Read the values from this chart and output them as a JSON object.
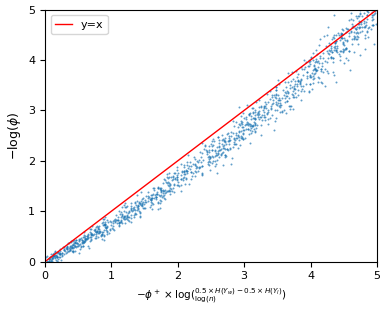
{
  "xlim": [
    0,
    5
  ],
  "ylim": [
    0,
    5
  ],
  "xticks": [
    0,
    1,
    2,
    3,
    4,
    5
  ],
  "yticks": [
    0,
    1,
    2,
    3,
    4,
    5
  ],
  "line_color": "red",
  "line_label": "y=x",
  "scatter_color": "#1f77b4",
  "scatter_size": 2,
  "scatter_alpha": 0.7,
  "n_points": 1200,
  "seed": 42,
  "figsize": [
    3.86,
    3.12
  ],
  "dpi": 100,
  "ylabel_fontsize": 9,
  "xlabel_fontsize": 7.5,
  "legend_fontsize": 8,
  "tick_fontsize": 8
}
